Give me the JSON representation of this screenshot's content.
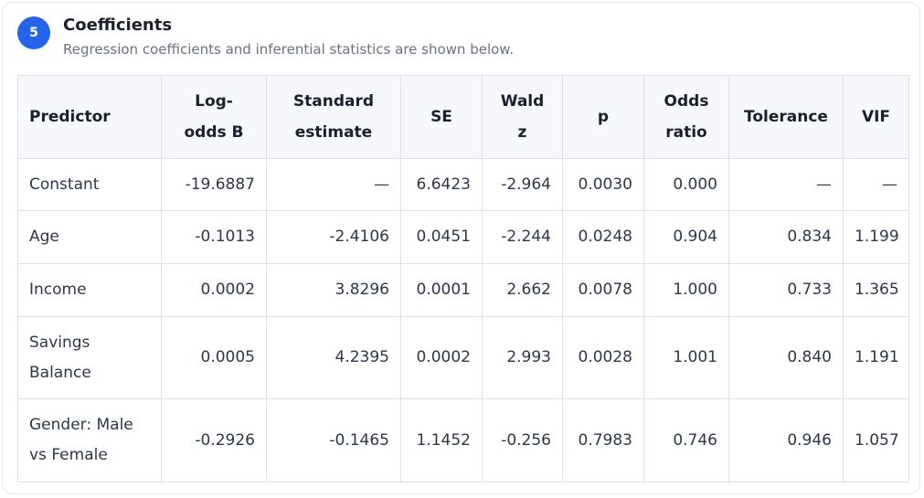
{
  "header": {
    "step": "5",
    "title": "Coefficients",
    "subtitle": "Regression coefficients and inferential statistics are shown below."
  },
  "table": {
    "columns": [
      [
        "Predictor"
      ],
      [
        "Log-",
        "odds B"
      ],
      [
        "Standard",
        "estimate"
      ],
      [
        "SE"
      ],
      [
        "Wald",
        "z"
      ],
      [
        "p"
      ],
      [
        "Odds",
        "ratio"
      ],
      [
        "Tolerance"
      ],
      [
        "VIF"
      ]
    ],
    "rows": [
      {
        "name": [
          "Constant"
        ],
        "values": [
          "-19.6887",
          "—",
          "6.6423",
          "-2.964",
          "0.0030",
          "0.000",
          "—",
          "—"
        ]
      },
      {
        "name": [
          "Age"
        ],
        "values": [
          "-0.1013",
          "-2.4106",
          "0.0451",
          "-2.244",
          "0.0248",
          "0.904",
          "0.834",
          "1.199"
        ]
      },
      {
        "name": [
          "Income"
        ],
        "values": [
          "0.0002",
          "3.8296",
          "0.0001",
          "2.662",
          "0.0078",
          "1.000",
          "0.733",
          "1.365"
        ]
      },
      {
        "name": [
          "Savings",
          "Balance"
        ],
        "values": [
          "0.0005",
          "4.2395",
          "0.0002",
          "2.993",
          "0.0028",
          "1.001",
          "0.840",
          "1.191"
        ]
      },
      {
        "name": [
          "Gender: Male",
          "vs Female"
        ],
        "values": [
          "-0.2926",
          "-0.1465",
          "1.1452",
          "-0.256",
          "0.7983",
          "0.746",
          "0.946",
          "1.057"
        ]
      }
    ]
  }
}
